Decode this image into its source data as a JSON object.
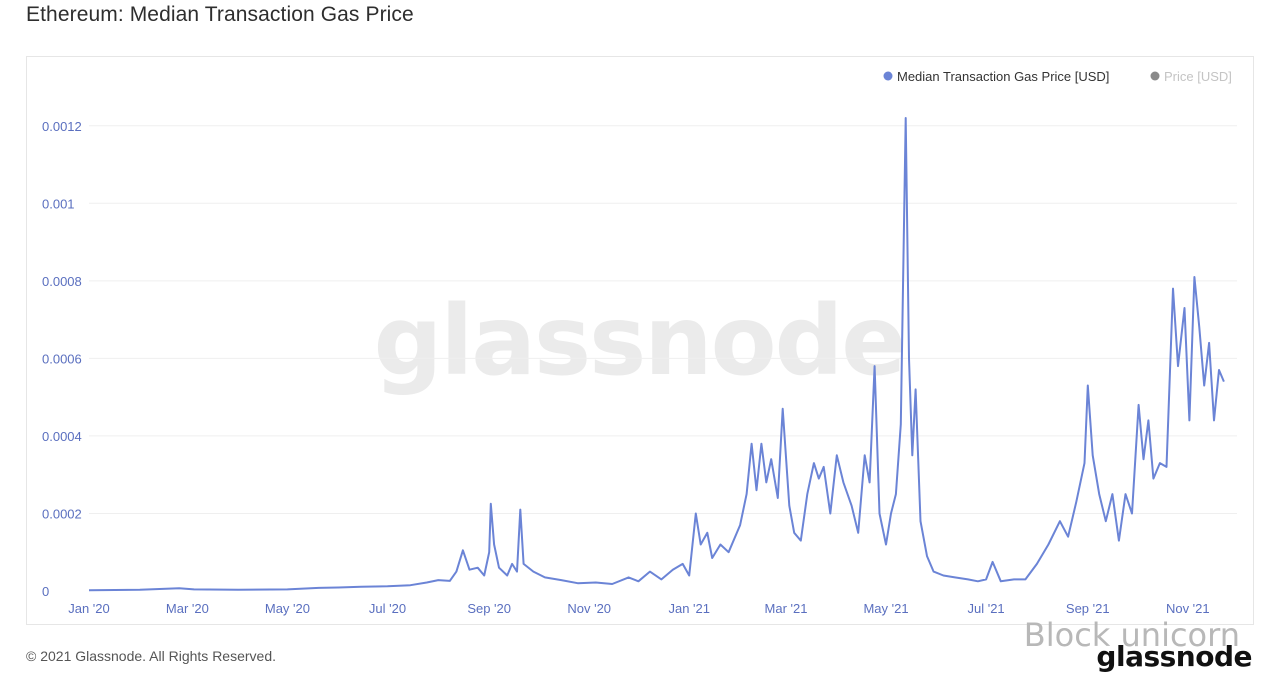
{
  "page": {
    "title": "Ethereum: Median Transaction Gas Price",
    "footer": "© 2021 Glassnode. All Rights Reserved.",
    "overlay_watermark": "Block unicorn",
    "brand_logo": "glassnode",
    "chart_watermark": "glassnode"
  },
  "chart_data": {
    "type": "line",
    "title": "Ethereum: Median Transaction Gas Price",
    "xlabel": "",
    "ylabel": "",
    "x_tick_labels": [
      "Jan '20",
      "Mar '20",
      "May '20",
      "Jul '20",
      "Sep '20",
      "Nov '20",
      "Jan '21",
      "Mar '21",
      "May '21",
      "Jul '21",
      "Sep '21",
      "Nov '21"
    ],
    "y_tick_labels": [
      "0",
      "0.0002",
      "0.0004",
      "0.0006",
      "0.0008",
      "0.001",
      "0.0012"
    ],
    "y_ticks": [
      0,
      0.0002,
      0.0004,
      0.0006,
      0.0008,
      0.001,
      0.0012
    ],
    "xlim": [
      "2020-01-01",
      "2021-12-01"
    ],
    "ylim": [
      0,
      0.0013
    ],
    "grid": true,
    "legend_position": "top-right",
    "colors": {
      "series": "#6b84d6",
      "inactive": "#8a8a8a",
      "axis_text": "#5a6fbf",
      "grid": "#efefef"
    },
    "legend": [
      {
        "label": "Median Transaction Gas Price [USD]",
        "active": true
      },
      {
        "label": "Price [USD]",
        "active": false
      }
    ],
    "series": [
      {
        "name": "Median Transaction Gas Price [USD]",
        "points": [
          [
            "2020-01-01",
            2e-06
          ],
          [
            "2020-02-01",
            3e-06
          ],
          [
            "2020-02-25",
            7e-06
          ],
          [
            "2020-03-05",
            4e-06
          ],
          [
            "2020-04-01",
            3e-06
          ],
          [
            "2020-05-01",
            4e-06
          ],
          [
            "2020-05-20",
            8e-06
          ],
          [
            "2020-06-01",
            9e-06
          ],
          [
            "2020-06-15",
            1.1e-05
          ],
          [
            "2020-07-01",
            1.2e-05
          ],
          [
            "2020-07-15",
            1.5e-05
          ],
          [
            "2020-07-25",
            2.2e-05
          ],
          [
            "2020-08-01",
            2.8e-05
          ],
          [
            "2020-08-08",
            2.6e-05
          ],
          [
            "2020-08-12",
            5e-05
          ],
          [
            "2020-08-16",
            0.000105
          ],
          [
            "2020-08-20",
            5.5e-05
          ],
          [
            "2020-08-25",
            6e-05
          ],
          [
            "2020-08-29",
            4e-05
          ],
          [
            "2020-09-01",
            0.0001
          ],
          [
            "2020-09-02",
            0.000225
          ],
          [
            "2020-09-04",
            0.00012
          ],
          [
            "2020-09-07",
            6e-05
          ],
          [
            "2020-09-12",
            4e-05
          ],
          [
            "2020-09-15",
            7e-05
          ],
          [
            "2020-09-18",
            5e-05
          ],
          [
            "2020-09-20",
            0.00021
          ],
          [
            "2020-09-22",
            7e-05
          ],
          [
            "2020-09-28",
            5e-05
          ],
          [
            "2020-10-05",
            3.5e-05
          ],
          [
            "2020-10-15",
            2.8e-05
          ],
          [
            "2020-10-25",
            2e-05
          ],
          [
            "2020-11-05",
            2.2e-05
          ],
          [
            "2020-11-15",
            1.8e-05
          ],
          [
            "2020-11-25",
            3.5e-05
          ],
          [
            "2020-12-01",
            2.5e-05
          ],
          [
            "2020-12-08",
            5e-05
          ],
          [
            "2020-12-15",
            3e-05
          ],
          [
            "2020-12-22",
            5.5e-05
          ],
          [
            "2020-12-28",
            7e-05
          ],
          [
            "2021-01-01",
            4e-05
          ],
          [
            "2021-01-05",
            0.0002
          ],
          [
            "2021-01-08",
            0.00012
          ],
          [
            "2021-01-12",
            0.00015
          ],
          [
            "2021-01-15",
            8.5e-05
          ],
          [
            "2021-01-20",
            0.00012
          ],
          [
            "2021-01-25",
            0.0001
          ],
          [
            "2021-02-01",
            0.00017
          ],
          [
            "2021-02-05",
            0.00025
          ],
          [
            "2021-02-08",
            0.00038
          ],
          [
            "2021-02-11",
            0.00026
          ],
          [
            "2021-02-14",
            0.00038
          ],
          [
            "2021-02-17",
            0.00028
          ],
          [
            "2021-02-20",
            0.00034
          ],
          [
            "2021-02-24",
            0.00024
          ],
          [
            "2021-02-27",
            0.00047
          ],
          [
            "2021-03-03",
            0.00022
          ],
          [
            "2021-03-06",
            0.00015
          ],
          [
            "2021-03-10",
            0.00013
          ],
          [
            "2021-03-14",
            0.00025
          ],
          [
            "2021-03-18",
            0.00033
          ],
          [
            "2021-03-21",
            0.00029
          ],
          [
            "2021-03-24",
            0.00032
          ],
          [
            "2021-03-28",
            0.0002
          ],
          [
            "2021-04-01",
            0.00035
          ],
          [
            "2021-04-05",
            0.00028
          ],
          [
            "2021-04-10",
            0.00022
          ],
          [
            "2021-04-14",
            0.00015
          ],
          [
            "2021-04-18",
            0.00035
          ],
          [
            "2021-04-21",
            0.00028
          ],
          [
            "2021-04-24",
            0.00058
          ],
          [
            "2021-04-27",
            0.0002
          ],
          [
            "2021-05-01",
            0.00012
          ],
          [
            "2021-05-04",
            0.0002
          ],
          [
            "2021-05-07",
            0.00025
          ],
          [
            "2021-05-10",
            0.00043
          ],
          [
            "2021-05-13",
            0.00122
          ],
          [
            "2021-05-15",
            0.0006
          ],
          [
            "2021-05-17",
            0.00035
          ],
          [
            "2021-05-19",
            0.00052
          ],
          [
            "2021-05-22",
            0.00018
          ],
          [
            "2021-05-26",
            9e-05
          ],
          [
            "2021-05-30",
            5e-05
          ],
          [
            "2021-06-05",
            4e-05
          ],
          [
            "2021-06-12",
            3.5e-05
          ],
          [
            "2021-06-20",
            3e-05
          ],
          [
            "2021-06-26",
            2.5e-05
          ],
          [
            "2021-07-01",
            3e-05
          ],
          [
            "2021-07-05",
            7.5e-05
          ],
          [
            "2021-07-10",
            2.5e-05
          ],
          [
            "2021-07-18",
            3e-05
          ],
          [
            "2021-07-25",
            3e-05
          ],
          [
            "2021-08-01",
            7e-05
          ],
          [
            "2021-08-08",
            0.00012
          ],
          [
            "2021-08-15",
            0.00018
          ],
          [
            "2021-08-20",
            0.00014
          ],
          [
            "2021-08-25",
            0.00023
          ],
          [
            "2021-08-30",
            0.00033
          ],
          [
            "2021-09-01",
            0.00053
          ],
          [
            "2021-09-04",
            0.00035
          ],
          [
            "2021-09-08",
            0.00025
          ],
          [
            "2021-09-12",
            0.00018
          ],
          [
            "2021-09-16",
            0.00025
          ],
          [
            "2021-09-20",
            0.00013
          ],
          [
            "2021-09-24",
            0.00025
          ],
          [
            "2021-09-28",
            0.0002
          ],
          [
            "2021-10-02",
            0.00048
          ],
          [
            "2021-10-05",
            0.00034
          ],
          [
            "2021-10-08",
            0.00044
          ],
          [
            "2021-10-11",
            0.00029
          ],
          [
            "2021-10-15",
            0.00033
          ],
          [
            "2021-10-19",
            0.00032
          ],
          [
            "2021-10-23",
            0.00078
          ],
          [
            "2021-10-26",
            0.00058
          ],
          [
            "2021-10-30",
            0.00073
          ],
          [
            "2021-11-02",
            0.00044
          ],
          [
            "2021-11-05",
            0.00081
          ],
          [
            "2021-11-08",
            0.00068
          ],
          [
            "2021-11-11",
            0.00053
          ],
          [
            "2021-11-14",
            0.00064
          ],
          [
            "2021-11-17",
            0.00044
          ],
          [
            "2021-11-20",
            0.00057
          ],
          [
            "2021-11-23",
            0.00054
          ]
        ]
      }
    ]
  }
}
